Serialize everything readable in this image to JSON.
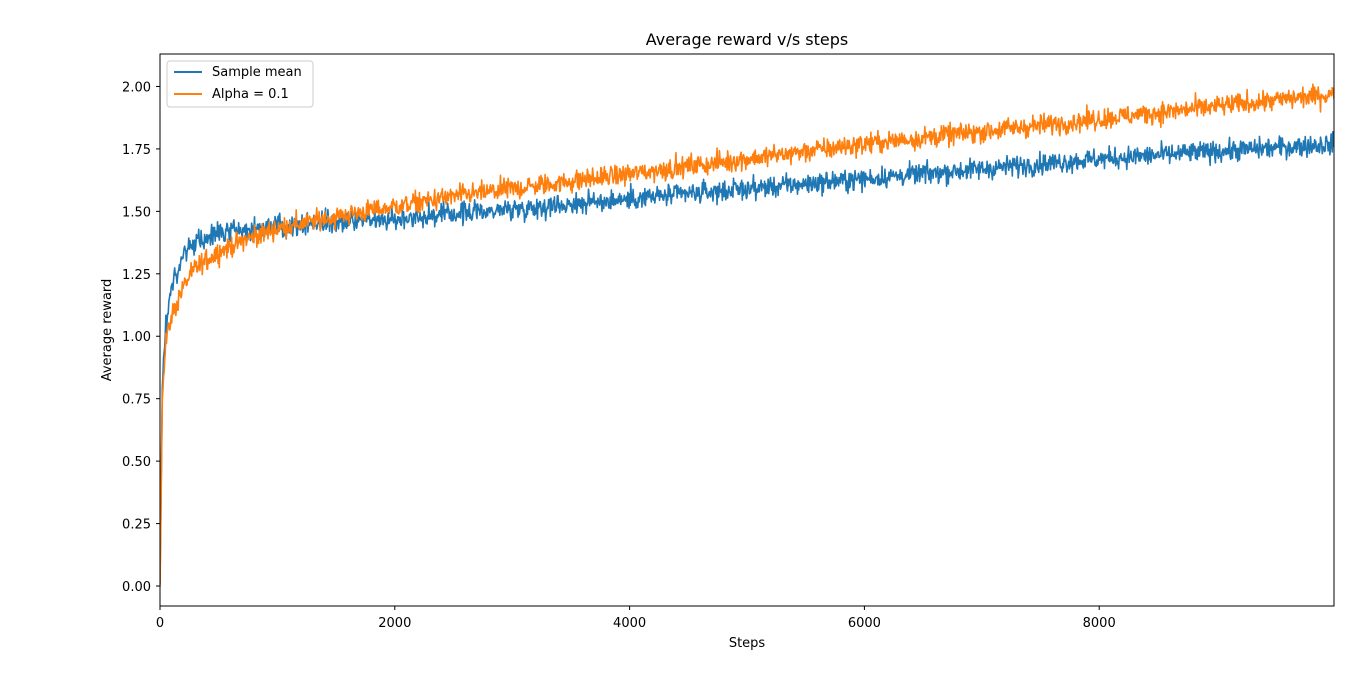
{
  "chart_data": {
    "type": "line",
    "title": "Average reward v/s steps",
    "xlabel": "Steps",
    "ylabel": "Average reward",
    "xlim": [
      0,
      10000
    ],
    "ylim": [
      -0.08,
      2.13
    ],
    "xticks": [
      0,
      2000,
      4000,
      6000,
      8000
    ],
    "xtick_labels": [
      "0",
      "2000",
      "4000",
      "6000",
      "8000"
    ],
    "yticks": [
      0.0,
      0.25,
      0.5,
      0.75,
      1.0,
      1.25,
      1.5,
      1.75,
      2.0
    ],
    "ytick_labels": [
      "0.00",
      "0.25",
      "0.50",
      "0.75",
      "1.00",
      "1.25",
      "1.50",
      "1.75",
      "2.00"
    ],
    "grid": false,
    "legend_position": "top-left",
    "series": [
      {
        "name": "Sample mean",
        "color": "#1f77b4",
        "noise": 0.03,
        "points": [
          [
            0,
            0.0
          ],
          [
            20,
            0.8
          ],
          [
            50,
            1.05
          ],
          [
            100,
            1.2
          ],
          [
            200,
            1.33
          ],
          [
            300,
            1.37
          ],
          [
            500,
            1.41
          ],
          [
            800,
            1.43
          ],
          [
            1000,
            1.44
          ],
          [
            1500,
            1.46
          ],
          [
            2000,
            1.47
          ],
          [
            2500,
            1.49
          ],
          [
            3000,
            1.51
          ],
          [
            3500,
            1.53
          ],
          [
            4000,
            1.55
          ],
          [
            5000,
            1.59
          ],
          [
            6000,
            1.63
          ],
          [
            7000,
            1.67
          ],
          [
            8000,
            1.71
          ],
          [
            9000,
            1.74
          ],
          [
            10000,
            1.77
          ]
        ]
      },
      {
        "name": "Alpha = 0.1",
        "color": "#ff7f0e",
        "noise": 0.03,
        "points": [
          [
            0,
            0.0
          ],
          [
            20,
            0.75
          ],
          [
            50,
            0.98
          ],
          [
            100,
            1.08
          ],
          [
            200,
            1.2
          ],
          [
            300,
            1.27
          ],
          [
            500,
            1.34
          ],
          [
            800,
            1.4
          ],
          [
            1000,
            1.43
          ],
          [
            1500,
            1.48
          ],
          [
            2000,
            1.52
          ],
          [
            2500,
            1.56
          ],
          [
            3000,
            1.59
          ],
          [
            3500,
            1.62
          ],
          [
            4000,
            1.65
          ],
          [
            5000,
            1.71
          ],
          [
            6000,
            1.77
          ],
          [
            7000,
            1.82
          ],
          [
            8000,
            1.87
          ],
          [
            9000,
            1.92
          ],
          [
            10000,
            1.97
          ]
        ]
      }
    ]
  }
}
